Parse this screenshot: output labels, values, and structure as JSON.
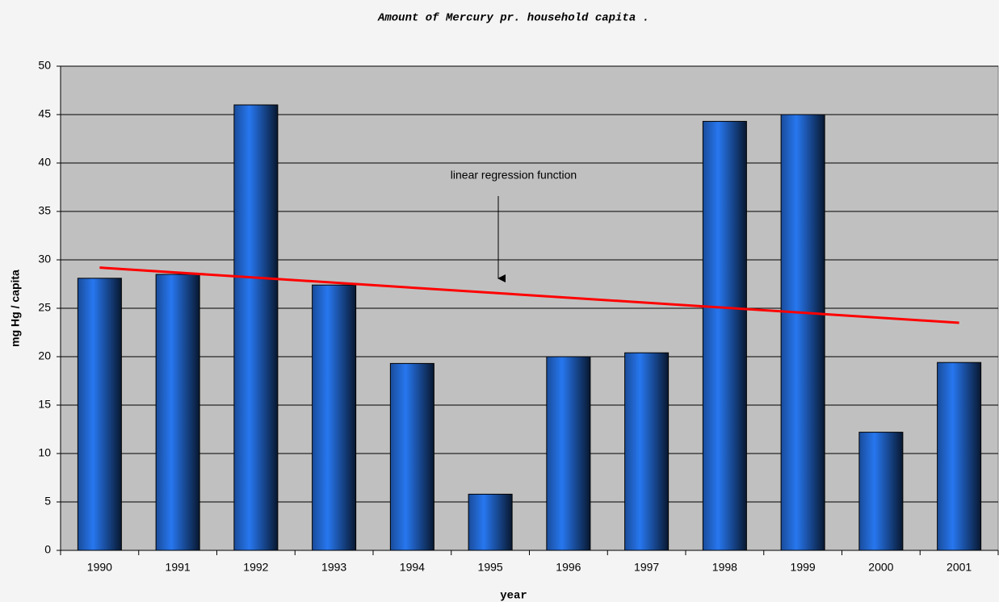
{
  "chart_data": {
    "type": "bar",
    "title": "Amount of Mercury pr. household capita .",
    "xlabel": "year",
    "ylabel": "mg Hg / capita",
    "categories": [
      "1990",
      "1991",
      "1992",
      "1993",
      "1994",
      "1995",
      "1996",
      "1997",
      "1998",
      "1999",
      "2000",
      "2001"
    ],
    "values": [
      28.1,
      28.5,
      46,
      27.4,
      19.3,
      5.8,
      20,
      20.4,
      44.3,
      45,
      12.2,
      19.4
    ],
    "color": "#1f5fc0",
    "ylim": [
      0,
      50
    ],
    "yticks": [
      0,
      5,
      10,
      15,
      20,
      25,
      30,
      35,
      40,
      45,
      50
    ],
    "grid": true,
    "trendline": {
      "values": [
        29.2,
        23.5
      ],
      "color": "#ff0000"
    },
    "annotation": "linear regression function"
  }
}
